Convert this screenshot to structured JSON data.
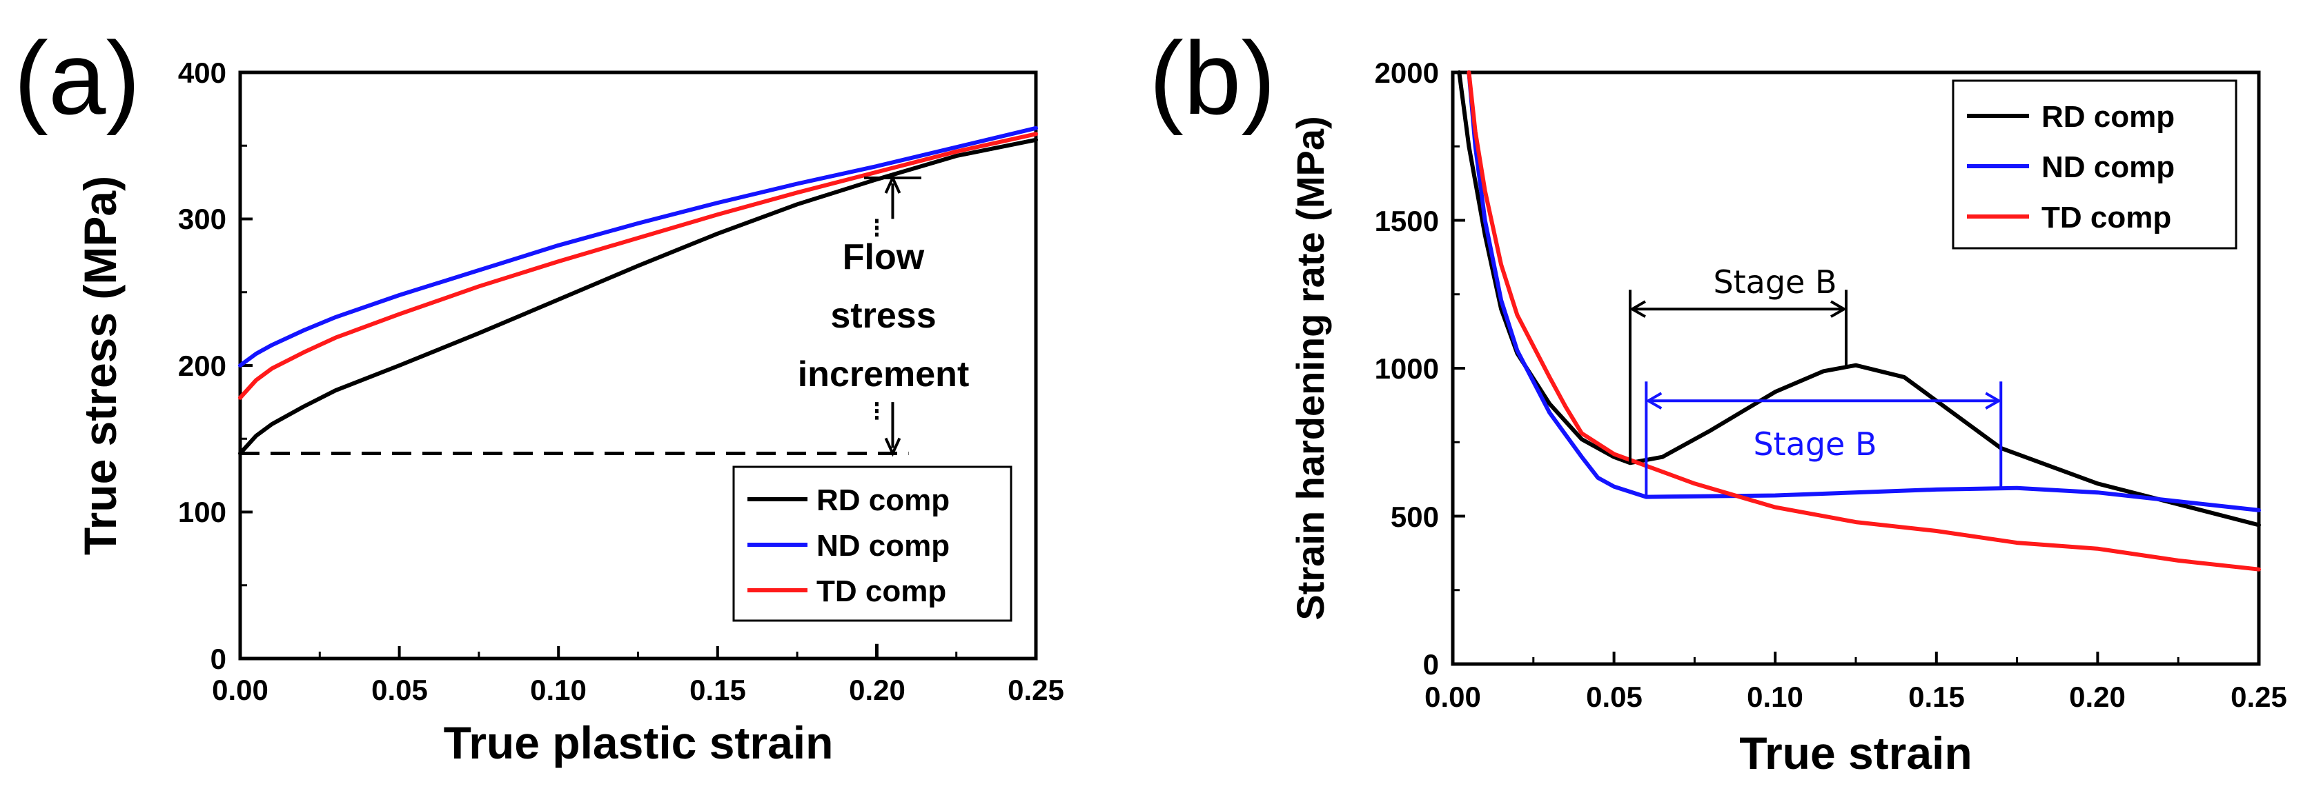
{
  "colors": {
    "RD": "#000000",
    "ND": "#1414ff",
    "TD": "#ff1a1a"
  },
  "chart_data": [
    {
      "panel": "(a)",
      "type": "line",
      "title": "",
      "xlabel": "True plastic strain",
      "ylabel": "True stress (MPa)",
      "xlim": [
        0,
        0.25
      ],
      "ylim": [
        0,
        400
      ],
      "xticks": [
        "0.00",
        "0.05",
        "0.10",
        "0.15",
        "0.20",
        "0.25"
      ],
      "yticks": [
        "0",
        "100",
        "200",
        "300",
        "400"
      ],
      "series": [
        {
          "name": "RD comp",
          "key": "RD",
          "x": [
            0,
            0.005,
            0.01,
            0.02,
            0.03,
            0.05,
            0.075,
            0.1,
            0.125,
            0.15,
            0.175,
            0.2,
            0.225,
            0.25
          ],
          "y": [
            140,
            152,
            160,
            172,
            183,
            200,
            222,
            245,
            268,
            290,
            310,
            327,
            343,
            354
          ]
        },
        {
          "name": "ND comp",
          "key": "ND",
          "x": [
            0,
            0.005,
            0.01,
            0.02,
            0.03,
            0.05,
            0.075,
            0.1,
            0.125,
            0.15,
            0.175,
            0.2,
            0.225,
            0.25
          ],
          "y": [
            200,
            208,
            214,
            224,
            233,
            248,
            265,
            282,
            297,
            311,
            324,
            336,
            349,
            362
          ]
        },
        {
          "name": "TD comp",
          "key": "TD",
          "x": [
            0,
            0.005,
            0.01,
            0.02,
            0.03,
            0.05,
            0.075,
            0.1,
            0.125,
            0.15,
            0.175,
            0.2,
            0.225,
            0.25
          ],
          "y": [
            178,
            190,
            198,
            209,
            219,
            235,
            254,
            271,
            287,
            303,
            318,
            332,
            346,
            358
          ]
        }
      ],
      "annotations": {
        "reference_stress": 140,
        "marker_strain": 0.2,
        "arrow_strain": 0.205,
        "upper_stress": 328,
        "label_lines": [
          "Flow",
          "stress",
          "increment"
        ]
      },
      "legend": {
        "position": "bottom-right",
        "entries": [
          "RD comp",
          "ND comp",
          "TD comp"
        ]
      }
    },
    {
      "panel": "(b)",
      "type": "line",
      "title": "",
      "xlabel": "True strain",
      "ylabel": "Strain hardening rate (MPa)",
      "xlim": [
        0,
        0.25
      ],
      "ylim": [
        0,
        2000
      ],
      "xticks": [
        "0.00",
        "0.05",
        "0.10",
        "0.15",
        "0.20",
        "0.25"
      ],
      "yticks": [
        "0",
        "500",
        "1000",
        "1500",
        "2000"
      ],
      "series": [
        {
          "name": "RD comp",
          "key": "RD",
          "x": [
            0.002,
            0.005,
            0.01,
            0.015,
            0.02,
            0.03,
            0.04,
            0.05,
            0.055,
            0.065,
            0.08,
            0.1,
            0.115,
            0.125,
            0.14,
            0.155,
            0.17,
            0.2,
            0.225,
            0.25
          ],
          "y": [
            2000,
            1750,
            1450,
            1200,
            1050,
            880,
            760,
            700,
            680,
            700,
            790,
            920,
            990,
            1010,
            970,
            850,
            730,
            610,
            540,
            470
          ]
        },
        {
          "name": "ND comp",
          "key": "ND",
          "x": [
            0.005,
            0.007,
            0.01,
            0.015,
            0.02,
            0.03,
            0.04,
            0.045,
            0.05,
            0.06,
            0.1,
            0.15,
            0.175,
            0.2,
            0.25
          ],
          "y": [
            2000,
            1750,
            1500,
            1230,
            1060,
            850,
            700,
            630,
            600,
            565,
            570,
            590,
            595,
            580,
            520
          ]
        },
        {
          "name": "TD comp",
          "key": "TD",
          "x": [
            0.005,
            0.007,
            0.01,
            0.015,
            0.02,
            0.03,
            0.035,
            0.04,
            0.05,
            0.075,
            0.1,
            0.125,
            0.15,
            0.175,
            0.2,
            0.225,
            0.25
          ],
          "y": [
            2000,
            1800,
            1600,
            1350,
            1180,
            970,
            870,
            780,
            710,
            610,
            530,
            480,
            450,
            410,
            390,
            350,
            320
          ]
        }
      ],
      "annotations": [
        {
          "label": "Stage B",
          "key": "RD",
          "x_start": 0.055,
          "x_end": 0.122,
          "bracket_y": 1200,
          "bottom_y": 680
        },
        {
          "label": "Stage B",
          "key": "ND",
          "x_start": 0.06,
          "x_end": 0.17,
          "bracket_y": 890,
          "bottom_y": 565
        }
      ],
      "legend": {
        "position": "top-right",
        "entries": [
          "RD comp",
          "ND comp",
          "TD comp"
        ]
      }
    }
  ]
}
